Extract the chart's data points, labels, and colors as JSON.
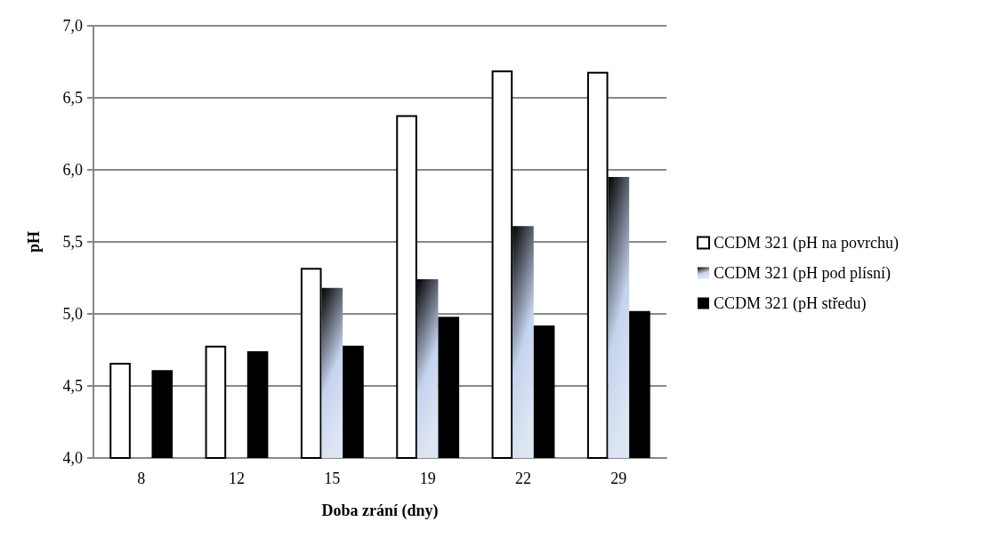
{
  "chart_data": {
    "type": "bar",
    "xlabel": "Doba zrání (dny)",
    "ylabel": "pH",
    "categories": [
      "8",
      "12",
      "15",
      "19",
      "22",
      "29"
    ],
    "series": [
      {
        "name": "CCDM 321 (pH na povrchu)",
        "color": "#ffffff",
        "values": [
          4.66,
          4.78,
          5.32,
          6.38,
          6.69,
          6.68
        ]
      },
      {
        "name": "CCDM 321 (pH pod plísní)",
        "color": "#c5d3ee",
        "values": [
          null,
          null,
          5.18,
          5.24,
          5.61,
          5.95
        ]
      },
      {
        "name": "CCDM 321 (pH středu)",
        "color": "#000000",
        "values": [
          4.61,
          4.74,
          4.78,
          4.98,
          4.92,
          5.02
        ]
      }
    ],
    "ylim": [
      4,
      7
    ],
    "yticks": [
      {
        "value": 4,
        "label": "4,0"
      },
      {
        "value": 4.5,
        "label": "4,5"
      },
      {
        "value": 5,
        "label": "5,0"
      },
      {
        "value": 5.5,
        "label": "5,5"
      },
      {
        "value": 6,
        "label": "6,0"
      },
      {
        "value": 6.5,
        "label": "6,5"
      },
      {
        "value": 7,
        "label": "7,0"
      }
    ],
    "grid": "y",
    "legend": "right"
  }
}
